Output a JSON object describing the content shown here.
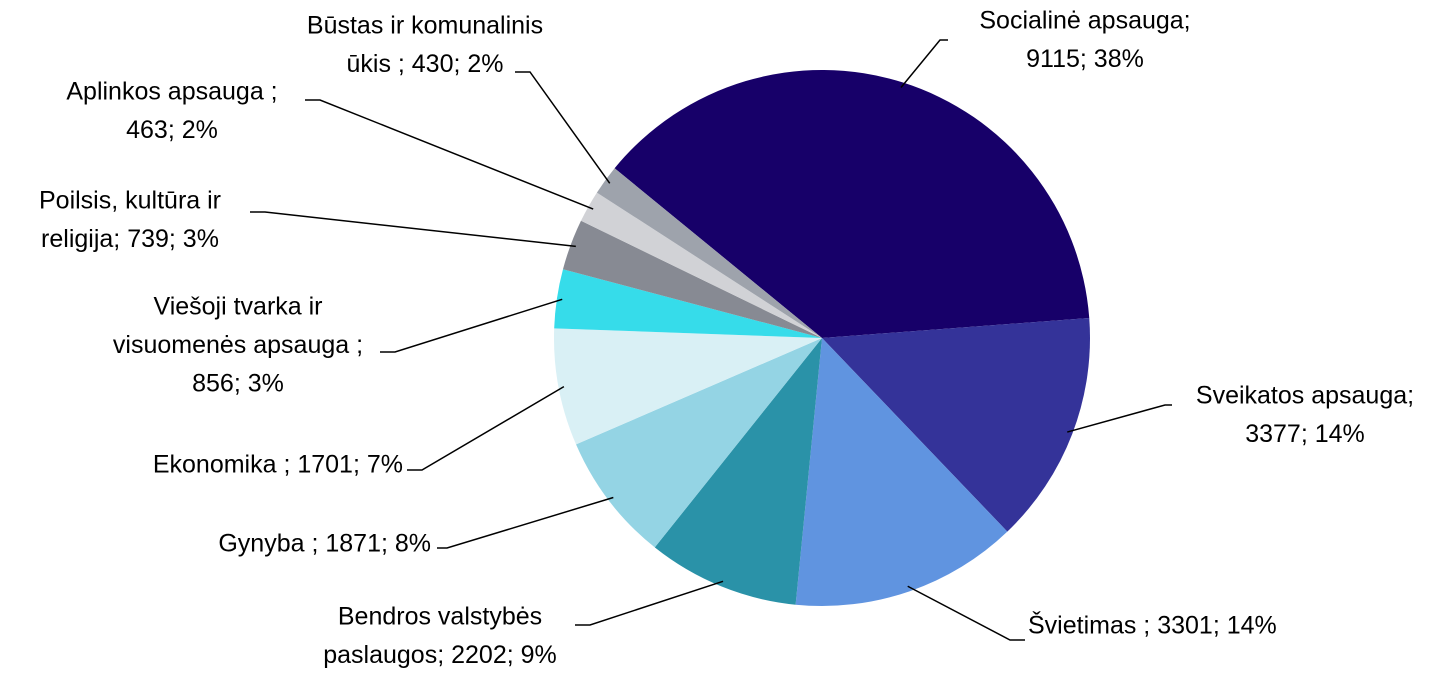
{
  "chart_data": {
    "type": "pie",
    "values": [
      9115,
      3377,
      3301,
      2202,
      1871,
      1701,
      856,
      739,
      463,
      430
    ],
    "value_labels": [
      [
        "Socialinė apsauga;",
        "9115; 38%"
      ],
      [
        "Sveikatos apsauga;",
        "3377; 14%"
      ],
      [
        "Švietimas ; 3301; 14%"
      ],
      [
        "Bendros valstybės",
        "paslaugos; 2202; 9%"
      ],
      [
        "Gynyba ; 1871; 8%"
      ],
      [
        "Ekonomika ; 1701; 7%"
      ],
      [
        "Viešoji tvarka ir",
        "visuomenės apsauga ;",
        "856; 3%"
      ],
      [
        "Poilsis, kultūra ir",
        "religija; 739; 3%"
      ],
      [
        "Aplinkos apsauga ;",
        "463; 2%"
      ],
      [
        "Būstas ir komunalinis",
        "ūkis ; 430; 2%"
      ]
    ],
    "colors": [
      "#170069",
      "#343399",
      "#6094e0",
      "#2a92a8",
      "#94d4e4",
      "#d9f0f5",
      "#36dcea",
      "#878a93",
      "#d1d2d6",
      "#9ea3ac"
    ]
  }
}
